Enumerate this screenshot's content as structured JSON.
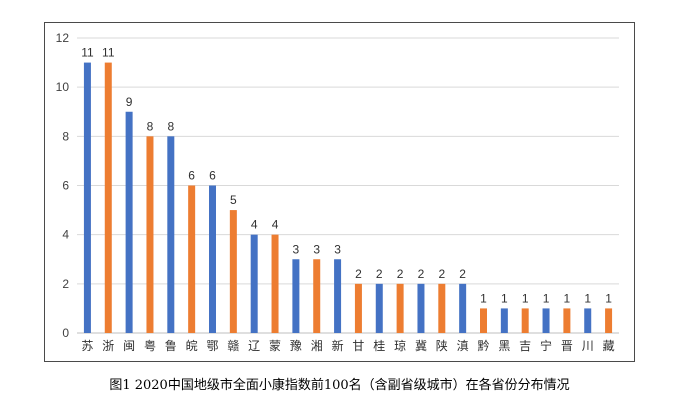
{
  "chart_data": {
    "type": "bar",
    "categories": [
      "苏",
      "浙",
      "闽",
      "粤",
      "鲁",
      "皖",
      "鄂",
      "赣",
      "辽",
      "蒙",
      "豫",
      "湘",
      "新",
      "甘",
      "桂",
      "琼",
      "冀",
      "陕",
      "滇",
      "黔",
      "黑",
      "吉",
      "宁",
      "晋",
      "川",
      "藏"
    ],
    "values": [
      11,
      11,
      9,
      8,
      8,
      6,
      6,
      5,
      4,
      4,
      3,
      3,
      3,
      2,
      2,
      2,
      2,
      2,
      2,
      1,
      1,
      1,
      1,
      1,
      1,
      1
    ],
    "bar_colors": [
      "#4472c4",
      "#ed7d31",
      "#4472c4",
      "#ed7d31",
      "#4472c4",
      "#ed7d31",
      "#4472c4",
      "#ed7d31",
      "#4472c4",
      "#ed7d31",
      "#4472c4",
      "#ed7d31",
      "#4472c4",
      "#ed7d31",
      "#4472c4",
      "#ed7d31",
      "#4472c4",
      "#ed7d31",
      "#4472c4",
      "#ed7d31",
      "#4472c4",
      "#ed7d31",
      "#4472c4",
      "#ed7d31",
      "#4472c4",
      "#ed7d31"
    ],
    "ylim": [
      0,
      12
    ],
    "yticks": [
      0,
      2,
      4,
      6,
      8,
      10,
      12
    ],
    "grid": true,
    "data_labels": true,
    "xlabel": "",
    "ylabel": ""
  },
  "caption": "图1  2020中国地级市全面小康指数前100名（含副省级城市）在各省份分布情况",
  "colors": {
    "blue": "#4472c4",
    "orange": "#ed7d31",
    "grid": "#d9d9d9",
    "axis": "#bfbfbf"
  }
}
